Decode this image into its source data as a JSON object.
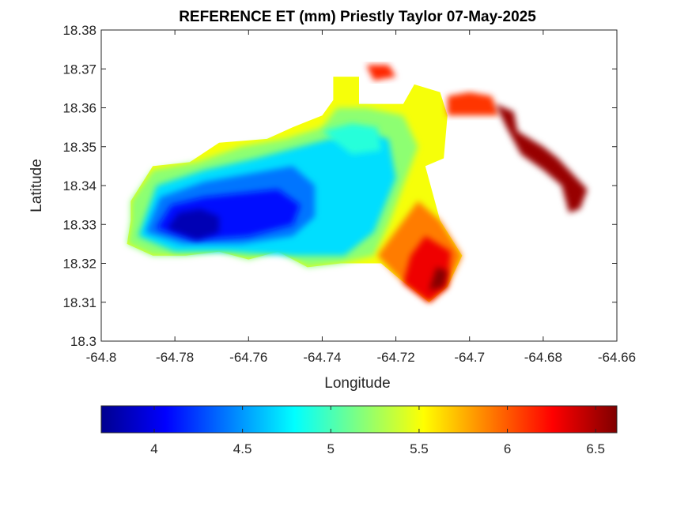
{
  "chart_data": {
    "type": "heatmap",
    "title": "REFERENCE ET (mm) Priestly Taylor 07-May-2025",
    "xlabel": "Longitude",
    "ylabel": "Latitude",
    "xlim": [
      -64.8,
      -64.66
    ],
    "ylim": [
      18.3,
      18.38
    ],
    "xticks": [
      -64.8,
      -64.78,
      -64.76,
      -64.74,
      -64.72,
      -64.7,
      -64.68,
      -64.66
    ],
    "yticks": [
      18.3,
      18.31,
      18.32,
      18.33,
      18.34,
      18.35,
      18.36,
      18.37,
      18.38
    ],
    "xtick_labels": [
      "-64.8",
      "-64.78",
      "-64.76",
      "-64.74",
      "-64.72",
      "-64.7",
      "-64.68",
      "-64.66"
    ],
    "ytick_labels": [
      "18.3",
      "18.31",
      "18.32",
      "18.33",
      "18.34",
      "18.35",
      "18.36",
      "18.37",
      "18.38"
    ],
    "colormap": "jet",
    "clim": [
      3.7,
      6.62
    ],
    "colorbar": {
      "location": "bottom",
      "ticks": [
        4,
        4.5,
        5,
        5.5,
        6,
        6.5
      ],
      "tick_labels": [
        "4",
        "4.5",
        "5",
        "5.5",
        "6",
        "6.5"
      ]
    },
    "grid": false,
    "contour_regions": [
      {
        "level": 5.5,
        "polygon": [
          [
            -64.792,
            18.336
          ],
          [
            -64.786,
            18.345
          ],
          [
            -64.776,
            18.346
          ],
          [
            -64.768,
            18.351
          ],
          [
            -64.755,
            18.352
          ],
          [
            -64.748,
            18.355
          ],
          [
            -64.74,
            18.358
          ],
          [
            -64.737,
            18.362
          ],
          [
            -64.737,
            18.368
          ],
          [
            -64.73,
            18.368
          ],
          [
            -64.73,
            18.361
          ],
          [
            -64.718,
            18.361
          ],
          [
            -64.715,
            18.366
          ],
          [
            -64.708,
            18.364
          ],
          [
            -64.706,
            18.358
          ],
          [
            -64.707,
            18.347
          ],
          [
            -64.712,
            18.345
          ],
          [
            -64.708,
            18.331
          ],
          [
            -64.702,
            18.322
          ],
          [
            -64.706,
            18.314
          ],
          [
            -64.711,
            18.31
          ],
          [
            -64.719,
            18.316
          ],
          [
            -64.724,
            18.32
          ],
          [
            -64.735,
            18.32
          ],
          [
            -64.744,
            18.319
          ],
          [
            -64.752,
            18.323
          ],
          [
            -64.76,
            18.321
          ],
          [
            -64.768,
            18.323
          ],
          [
            -64.777,
            18.322
          ],
          [
            -64.786,
            18.322
          ],
          [
            -64.793,
            18.325
          ],
          [
            -64.792,
            18.331
          ]
        ]
      },
      {
        "level": 5.2,
        "polygon": [
          [
            -64.792,
            18.336
          ],
          [
            -64.786,
            18.344
          ],
          [
            -64.774,
            18.346
          ],
          [
            -64.762,
            18.35
          ],
          [
            -64.75,
            18.352
          ],
          [
            -64.74,
            18.355
          ],
          [
            -64.736,
            18.36
          ],
          [
            -64.728,
            18.36
          ],
          [
            -64.718,
            18.358
          ],
          [
            -64.714,
            18.35
          ],
          [
            -64.718,
            18.34
          ],
          [
            -64.722,
            18.33
          ],
          [
            -64.726,
            18.322
          ],
          [
            -64.735,
            18.32
          ],
          [
            -64.744,
            18.319
          ],
          [
            -64.752,
            18.323
          ],
          [
            -64.76,
            18.321
          ],
          [
            -64.768,
            18.323
          ],
          [
            -64.777,
            18.322
          ],
          [
            -64.786,
            18.322
          ],
          [
            -64.793,
            18.325
          ],
          [
            -64.792,
            18.331
          ]
        ]
      },
      {
        "level": 5.9,
        "polygon": [
          [
            -64.714,
            18.336
          ],
          [
            -64.708,
            18.331
          ],
          [
            -64.702,
            18.322
          ],
          [
            -64.706,
            18.314
          ],
          [
            -64.711,
            18.31
          ],
          [
            -64.719,
            18.316
          ],
          [
            -64.725,
            18.322
          ]
        ]
      },
      {
        "level": 6.1,
        "polygon": [
          [
            -64.706,
            18.363
          ],
          [
            -64.7,
            18.364
          ],
          [
            -64.694,
            18.363
          ],
          [
            -64.692,
            18.358
          ],
          [
            -64.7,
            18.358
          ],
          [
            -64.706,
            18.358
          ]
        ]
      },
      {
        "level": 6.15,
        "polygon": [
          [
            -64.728,
            18.371
          ],
          [
            -64.722,
            18.371
          ],
          [
            -64.72,
            18.368
          ],
          [
            -64.726,
            18.367
          ]
        ]
      },
      {
        "level": 6.3,
        "polygon": [
          [
            -64.712,
            18.327
          ],
          [
            -64.705,
            18.323
          ],
          [
            -64.706,
            18.314
          ],
          [
            -64.711,
            18.31
          ],
          [
            -64.718,
            18.315
          ],
          [
            -64.716,
            18.322
          ]
        ]
      },
      {
        "level": 6.55,
        "polygon": [
          [
            -64.693,
            18.361
          ],
          [
            -64.688,
            18.359
          ],
          [
            -64.687,
            18.354
          ],
          [
            -64.68,
            18.35
          ],
          [
            -64.676,
            18.347
          ],
          [
            -64.671,
            18.342
          ],
          [
            -64.668,
            18.339
          ],
          [
            -64.67,
            18.334
          ],
          [
            -64.673,
            18.333
          ],
          [
            -64.675,
            18.34
          ],
          [
            -64.68,
            18.344
          ],
          [
            -64.686,
            18.348
          ],
          [
            -64.69,
            18.355
          ]
        ]
      },
      {
        "level": 6.6,
        "polygon": [
          [
            -64.711,
            18.313
          ],
          [
            -64.707,
            18.314
          ],
          [
            -64.706,
            18.318
          ],
          [
            -64.709,
            18.319
          ]
        ]
      },
      {
        "level": 4.7,
        "polygon": [
          [
            -64.79,
            18.327
          ],
          [
            -64.785,
            18.34
          ],
          [
            -64.772,
            18.344
          ],
          [
            -64.758,
            18.347
          ],
          [
            -64.746,
            18.35
          ],
          [
            -64.738,
            18.352
          ],
          [
            -64.73,
            18.354
          ],
          [
            -64.722,
            18.352
          ],
          [
            -64.72,
            18.342
          ],
          [
            -64.726,
            18.328
          ],
          [
            -64.734,
            18.322
          ],
          [
            -64.748,
            18.322
          ],
          [
            -64.765,
            18.323
          ],
          [
            -64.78,
            18.323
          ]
        ]
      },
      {
        "level": 4.9,
        "polygon": [
          [
            -64.74,
            18.354
          ],
          [
            -64.732,
            18.356
          ],
          [
            -64.725,
            18.355
          ],
          [
            -64.724,
            18.349
          ],
          [
            -64.732,
            18.348
          ]
        ]
      },
      {
        "level": 4.4,
        "polygon": [
          [
            -64.788,
            18.328
          ],
          [
            -64.784,
            18.337
          ],
          [
            -64.772,
            18.341
          ],
          [
            -64.76,
            18.343
          ],
          [
            -64.748,
            18.345
          ],
          [
            -64.742,
            18.34
          ],
          [
            -64.742,
            18.332
          ],
          [
            -64.748,
            18.327
          ],
          [
            -64.762,
            18.325
          ],
          [
            -64.778,
            18.325
          ]
        ]
      },
      {
        "level": 4.1,
        "polygon": [
          [
            -64.785,
            18.329
          ],
          [
            -64.781,
            18.335
          ],
          [
            -64.772,
            18.337
          ],
          [
            -64.762,
            18.338
          ],
          [
            -64.752,
            18.339
          ],
          [
            -64.746,
            18.335
          ],
          [
            -64.748,
            18.33
          ],
          [
            -64.76,
            18.327
          ],
          [
            -64.775,
            18.326
          ]
        ]
      },
      {
        "level": 3.85,
        "polygon": [
          [
            -64.782,
            18.329
          ],
          [
            -64.779,
            18.333
          ],
          [
            -64.773,
            18.334
          ],
          [
            -64.768,
            18.332
          ],
          [
            -64.768,
            18.328
          ],
          [
            -64.774,
            18.326
          ]
        ]
      }
    ]
  }
}
